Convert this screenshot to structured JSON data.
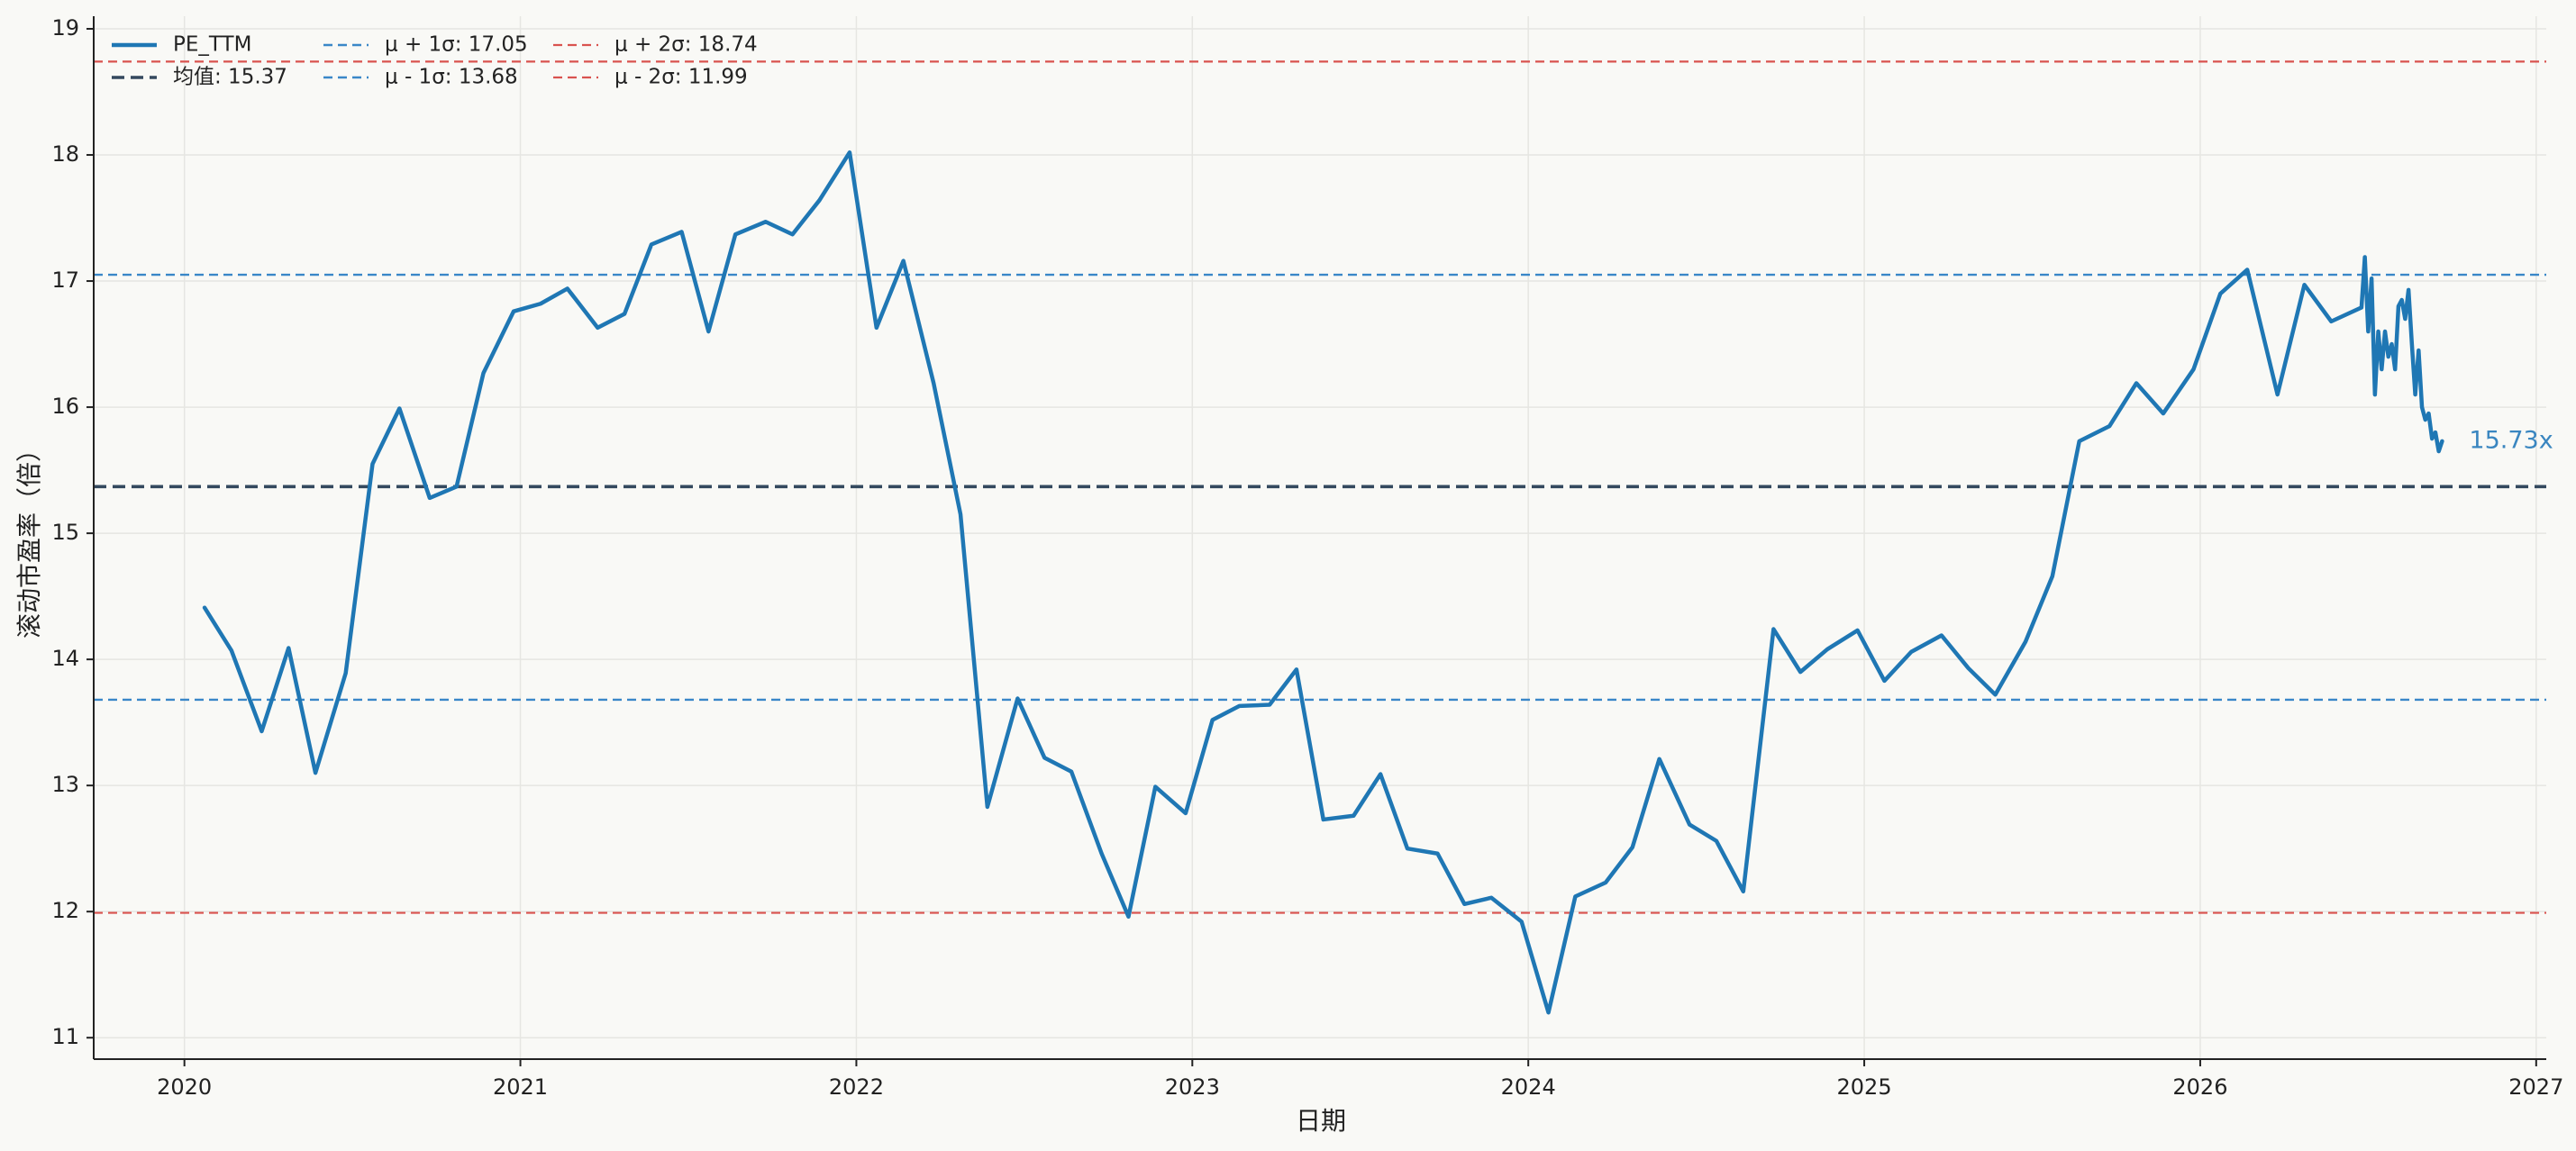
{
  "chart_data": {
    "type": "line",
    "x_label": "日期",
    "y_label": "滚动市盈率（倍）",
    "xlim": [
      2019.73,
      2027.03
    ],
    "xticks": [
      2020,
      2021,
      2022,
      2023,
      2024,
      2025,
      2026,
      2027
    ],
    "ylim": [
      10.83,
      19.1
    ],
    "yticks": [
      11,
      12,
      13,
      14,
      15,
      16,
      17,
      18,
      19
    ],
    "grid": true,
    "legend": "upper left",
    "series": [
      {
        "name": "PE_TTM",
        "color": "#1f77b4",
        "x": [
          2020.06,
          2020.14,
          2020.23,
          2020.31,
          2020.39,
          2020.48,
          2020.56,
          2020.64,
          2020.73,
          2020.81,
          2020.89,
          2020.98,
          2021.06,
          2021.14,
          2021.23,
          2021.31,
          2021.39,
          2021.48,
          2021.56,
          2021.64,
          2021.73,
          2021.81,
          2021.89,
          2021.98,
          2022.06,
          2022.14,
          2022.23,
          2022.31,
          2022.39,
          2022.48,
          2022.56,
          2022.64,
          2022.73,
          2022.81,
          2022.89,
          2022.98,
          2023.06,
          2023.14,
          2023.23,
          2023.31,
          2023.39,
          2023.48,
          2023.56,
          2023.64,
          2023.73,
          2023.81,
          2023.89,
          2023.98,
          2024.06,
          2024.14,
          2024.23,
          2024.31,
          2024.39,
          2024.48,
          2024.56,
          2024.64,
          2024.73,
          2024.81,
          2024.89,
          2024.98,
          2025.06,
          2025.14,
          2025.23,
          2025.31,
          2025.39,
          2025.48,
          2025.56,
          2025.64,
          2025.73,
          2025.81,
          2025.89,
          2025.98,
          2026.06,
          2026.14,
          2026.23,
          2026.31,
          2026.39,
          2026.48,
          2026.49,
          2026.5,
          2026.51,
          2026.52,
          2026.53,
          2026.54,
          2026.55,
          2026.56,
          2026.57,
          2026.58,
          2026.59,
          2026.6,
          2026.61,
          2026.62,
          2026.63,
          2026.64,
          2026.65,
          2026.66,
          2026.67,
          2026.68,
          2026.69,
          2026.7,
          2026.71,
          2026.72
        ],
        "values": [
          14.41,
          14.07,
          13.43,
          14.09,
          13.1,
          13.89,
          15.55,
          15.99,
          15.28,
          15.37,
          16.27,
          16.76,
          16.82,
          16.94,
          16.63,
          16.74,
          17.29,
          17.39,
          16.6,
          17.37,
          17.47,
          17.37,
          17.64,
          18.02,
          16.63,
          17.16,
          16.19,
          15.15,
          12.83,
          13.69,
          13.22,
          13.11,
          12.46,
          11.96,
          12.99,
          12.78,
          13.52,
          13.63,
          13.64,
          13.92,
          12.73,
          12.76,
          13.09,
          12.5,
          12.46,
          12.06,
          12.11,
          11.92,
          11.2,
          12.12,
          12.23,
          12.51,
          13.21,
          12.69,
          12.56,
          12.16,
          14.24,
          13.9,
          14.08,
          14.23,
          13.83,
          14.06,
          14.19,
          13.93,
          13.72,
          14.14,
          14.66,
          15.73,
          15.85,
          16.19,
          15.95,
          16.3,
          16.9,
          17.09,
          16.1,
          16.97,
          16.68,
          16.79,
          17.19,
          16.6,
          17.02,
          16.1,
          16.6,
          16.3,
          16.6,
          16.4,
          16.5,
          16.3,
          16.8,
          16.85,
          16.7,
          16.93,
          16.5,
          16.1,
          16.45,
          16.0,
          15.9,
          15.95,
          15.75,
          15.8,
          15.65,
          15.73
        ]
      }
    ],
    "ref_lines": [
      {
        "name": "均值: 15.37",
        "value": 15.37,
        "color": "#34495e",
        "width": 3.6,
        "dash": "14 7"
      },
      {
        "name": "μ + 1σ: 17.05",
        "value": 17.05,
        "color": "#3a87c8",
        "width": 2.4,
        "dash": "10 6"
      },
      {
        "name": "μ - 1σ: 13.68",
        "value": 13.68,
        "color": "#3a87c8",
        "width": 2.4,
        "dash": "10 6"
      },
      {
        "name": "μ + 2σ: 18.74",
        "value": 18.74,
        "color": "#d9534f",
        "width": 2.2,
        "dash": "10 6"
      },
      {
        "name": "μ - 2σ: 11.99",
        "value": 11.99,
        "color": "#d9534f",
        "width": 2.2,
        "dash": "10 6"
      }
    ],
    "annotation": {
      "value": 15.73,
      "label": "15.73x",
      "color": "#3a86c0"
    }
  }
}
